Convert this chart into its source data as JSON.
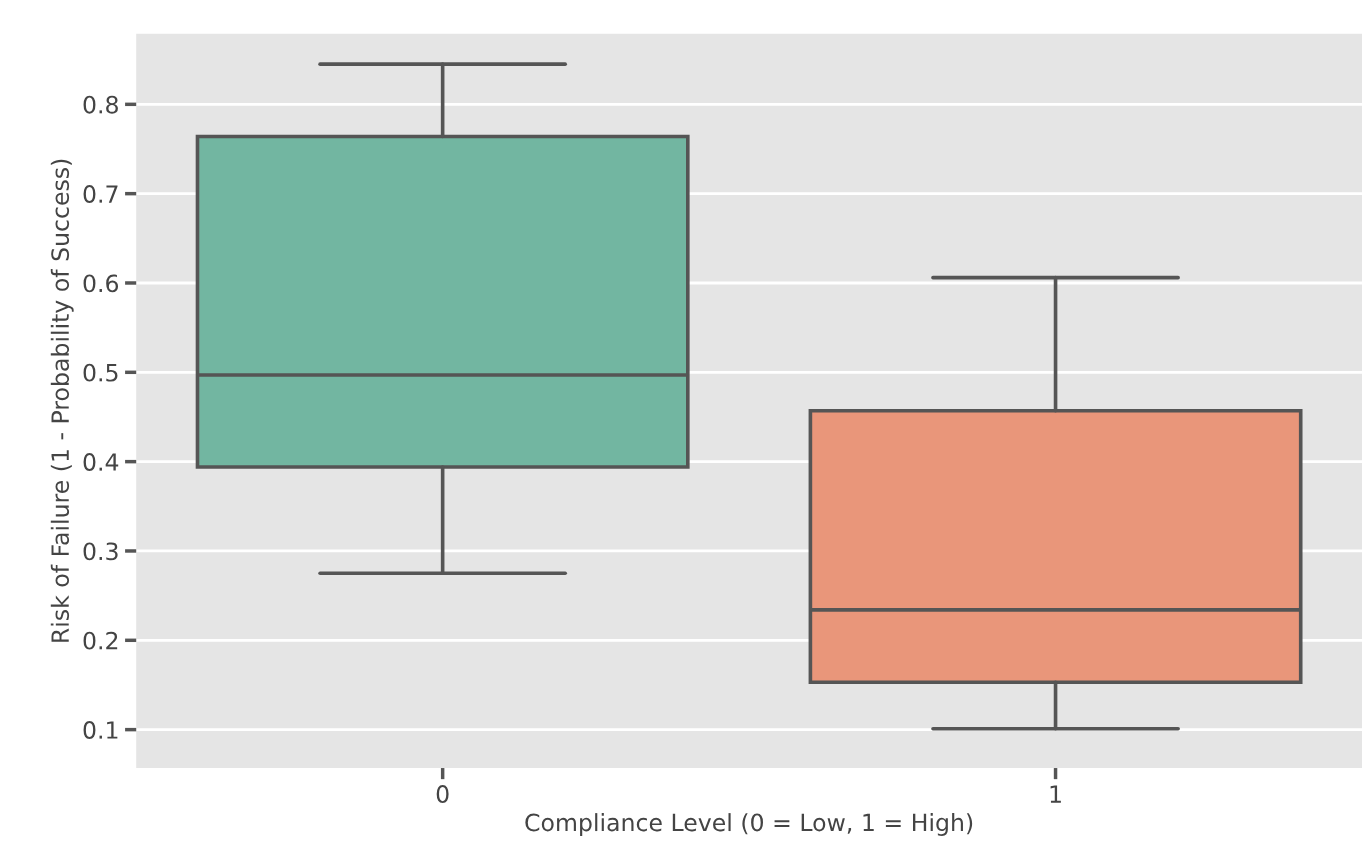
{
  "chart_data": {
    "type": "box",
    "xlabel": "Compliance Level (0 = Low, 1 = High)",
    "ylabel": "Risk of Failure (1 - Probability of Success)",
    "categories": [
      "0",
      "1"
    ],
    "boxes": [
      {
        "low": 0.275,
        "q1": 0.394,
        "median": 0.497,
        "q3": 0.764,
        "high": 0.845
      },
      {
        "low": 0.101,
        "q1": 0.153,
        "median": 0.234,
        "q3": 0.457,
        "high": 0.606
      }
    ],
    "colors": [
      "#72b6a1",
      "#e9967a"
    ],
    "ylim": [
      0.057,
      0.879
    ],
    "yticks": [
      0.1,
      0.2,
      0.3,
      0.4,
      0.5,
      0.6,
      0.7,
      0.8
    ],
    "grid": "y"
  }
}
